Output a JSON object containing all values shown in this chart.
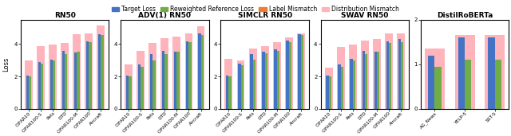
{
  "subplots": [
    {
      "title": "RN50",
      "categories": [
        "CIFAR10",
        "CIFAR100-S",
        "Pets",
        "DTD",
        "CIFAR100-M",
        "CIFAR100",
        "Aircraft"
      ],
      "target_loss": [
        2.05,
        2.9,
        3.05,
        3.55,
        3.45,
        4.15,
        4.6
      ],
      "reweighted_loss": [
        2.0,
        2.8,
        3.0,
        3.35,
        3.5,
        4.1,
        4.55
      ],
      "dist_mismatch": [
        3.0,
        3.85,
        3.95,
        4.05,
        4.6,
        4.65,
        5.15
      ],
      "ylim": [
        0,
        5.5
      ],
      "yticks": [
        0,
        2,
        4
      ]
    },
    {
      "title": "ADV(1) RN50",
      "categories": [
        "CIFAR10",
        "CIFAR100-S",
        "Pets",
        "DTD",
        "CIFAR100-M",
        "CIFAR100",
        "Aircraft"
      ],
      "target_loss": [
        2.05,
        2.75,
        3.35,
        3.55,
        3.5,
        4.15,
        4.65
      ],
      "reweighted_loss": [
        2.0,
        2.6,
        3.0,
        3.35,
        3.5,
        4.1,
        4.55
      ],
      "dist_mismatch": [
        2.75,
        3.55,
        4.05,
        4.35,
        4.45,
        4.65,
        5.1
      ],
      "ylim": [
        0,
        5.5
      ],
      "yticks": [
        0,
        2,
        4
      ]
    },
    {
      "title": "SIMCLR RN50",
      "categories": [
        "CIFAR10",
        "CIFAR100-S",
        "Pets",
        "DTD",
        "CIFAR100-M",
        "CIFAR100",
        "Aircraft"
      ],
      "target_loss": [
        2.05,
        2.8,
        3.35,
        3.5,
        3.65,
        4.2,
        4.6
      ],
      "reweighted_loss": [
        2.0,
        2.7,
        3.05,
        3.4,
        3.55,
        4.1,
        4.55
      ],
      "dist_mismatch": [
        3.1,
        3.0,
        3.7,
        3.85,
        4.1,
        4.4,
        4.65
      ],
      "ylim": [
        0,
        5.5
      ],
      "yticks": [
        0,
        2,
        4
      ]
    },
    {
      "title": "SWAV RN50",
      "categories": [
        "CIFAR10",
        "CIFAR100-S",
        "Pets",
        "DTD",
        "CIFAR100-M",
        "CIFAR100",
        "Aircraft"
      ],
      "target_loss": [
        2.05,
        2.75,
        3.1,
        3.55,
        3.5,
        4.15,
        4.3
      ],
      "reweighted_loss": [
        2.0,
        2.6,
        3.0,
        3.35,
        3.5,
        4.05,
        4.1
      ],
      "dist_mismatch": [
        2.55,
        3.8,
        3.95,
        4.2,
        4.3,
        4.65,
        4.65
      ],
      "ylim": [
        0,
        5.5
      ],
      "yticks": [
        0,
        2,
        4
      ]
    },
    {
      "title": "DistilRoBERTa",
      "categories": [
        "AG_News",
        "YELP-5",
        "SST-5"
      ],
      "target_loss": [
        1.2,
        1.6,
        1.6
      ],
      "reweighted_loss": [
        0.95,
        1.1,
        1.1
      ],
      "dist_mismatch": [
        1.35,
        1.65,
        1.65
      ],
      "ylim": [
        0,
        2.0
      ],
      "yticks": [
        0,
        1,
        2
      ]
    }
  ],
  "colors": {
    "target_loss": "#4472C4",
    "reweighted_loss": "#70AD47",
    "label_mismatch": "#ED7D31",
    "dist_mismatch": "#FFB3BA"
  },
  "legend_labels": [
    "Target Loss",
    "Reweighted Reference Loss",
    "Label Mismatch",
    "Distribution Mismatch"
  ],
  "ylabel": "Loss",
  "bar_width": 0.22,
  "figsize": [
    6.4,
    1.71
  ],
  "dpi": 100
}
